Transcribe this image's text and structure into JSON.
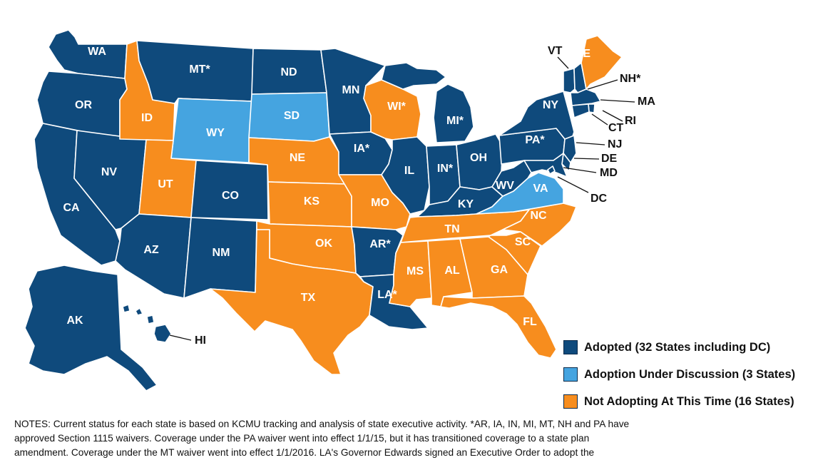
{
  "colors": {
    "adopted": "#0f4a7c",
    "discussion": "#45a4e0",
    "not_adopting": "#f78d1e"
  },
  "legend": [
    {
      "status": "adopted",
      "label": "Adopted (32 States including DC)"
    },
    {
      "status": "discussion",
      "label": "Adoption Under Discussion (3 States)"
    },
    {
      "status": "not_adopting",
      "label": "Not Adopting At This Time (16 States)"
    }
  ],
  "states": [
    {
      "abbr": "WA",
      "label": "WA",
      "status": "adopted"
    },
    {
      "abbr": "OR",
      "label": "OR",
      "status": "adopted"
    },
    {
      "abbr": "CA",
      "label": "CA",
      "status": "adopted"
    },
    {
      "abbr": "NV",
      "label": "NV",
      "status": "adopted"
    },
    {
      "abbr": "ID",
      "label": "ID",
      "status": "not_adopting"
    },
    {
      "abbr": "MT",
      "label": "MT*",
      "status": "adopted"
    },
    {
      "abbr": "WY",
      "label": "WY",
      "status": "discussion"
    },
    {
      "abbr": "UT",
      "label": "UT",
      "status": "not_adopting"
    },
    {
      "abbr": "AZ",
      "label": "AZ",
      "status": "adopted"
    },
    {
      "abbr": "CO",
      "label": "CO",
      "status": "adopted"
    },
    {
      "abbr": "NM",
      "label": "NM",
      "status": "adopted"
    },
    {
      "abbr": "ND",
      "label": "ND",
      "status": "adopted"
    },
    {
      "abbr": "SD",
      "label": "SD",
      "status": "discussion"
    },
    {
      "abbr": "NE",
      "label": "NE",
      "status": "not_adopting"
    },
    {
      "abbr": "KS",
      "label": "KS",
      "status": "not_adopting"
    },
    {
      "abbr": "OK",
      "label": "OK",
      "status": "not_adopting"
    },
    {
      "abbr": "TX",
      "label": "TX",
      "status": "not_adopting"
    },
    {
      "abbr": "MN",
      "label": "MN",
      "status": "adopted"
    },
    {
      "abbr": "IA",
      "label": "IA*",
      "status": "adopted"
    },
    {
      "abbr": "MO",
      "label": "MO",
      "status": "not_adopting"
    },
    {
      "abbr": "AR",
      "label": "AR*",
      "status": "adopted"
    },
    {
      "abbr": "LA",
      "label": "LA*",
      "status": "adopted"
    },
    {
      "abbr": "WI",
      "label": "WI*",
      "status": "not_adopting"
    },
    {
      "abbr": "IL",
      "label": "IL",
      "status": "adopted"
    },
    {
      "abbr": "MI",
      "label": "MI*",
      "status": "adopted"
    },
    {
      "abbr": "IN",
      "label": "IN*",
      "status": "adopted"
    },
    {
      "abbr": "OH",
      "label": "OH",
      "status": "adopted"
    },
    {
      "abbr": "KY",
      "label": "KY",
      "status": "adopted"
    },
    {
      "abbr": "TN",
      "label": "TN",
      "status": "not_adopting"
    },
    {
      "abbr": "MS",
      "label": "MS",
      "status": "not_adopting"
    },
    {
      "abbr": "AL",
      "label": "AL",
      "status": "not_adopting"
    },
    {
      "abbr": "GA",
      "label": "GA",
      "status": "not_adopting"
    },
    {
      "abbr": "FL",
      "label": "FL",
      "status": "not_adopting"
    },
    {
      "abbr": "SC",
      "label": "SC",
      "status": "not_adopting"
    },
    {
      "abbr": "NC",
      "label": "NC",
      "status": "not_adopting"
    },
    {
      "abbr": "VA",
      "label": "VA",
      "status": "discussion"
    },
    {
      "abbr": "WV",
      "label": "WV",
      "status": "adopted"
    },
    {
      "abbr": "PA",
      "label": "PA*",
      "status": "adopted"
    },
    {
      "abbr": "NY",
      "label": "NY",
      "status": "adopted"
    },
    {
      "abbr": "VT",
      "label": "VT",
      "status": "adopted"
    },
    {
      "abbr": "NH",
      "label": "NH*",
      "status": "adopted"
    },
    {
      "abbr": "ME",
      "label": "ME",
      "status": "not_adopting"
    },
    {
      "abbr": "MA",
      "label": "MA",
      "status": "adopted"
    },
    {
      "abbr": "RI",
      "label": "RI",
      "status": "adopted"
    },
    {
      "abbr": "CT",
      "label": "CT",
      "status": "adopted"
    },
    {
      "abbr": "NJ",
      "label": "NJ",
      "status": "adopted"
    },
    {
      "abbr": "DE",
      "label": "DE",
      "status": "adopted"
    },
    {
      "abbr": "MD",
      "label": "MD",
      "status": "adopted"
    },
    {
      "abbr": "DC",
      "label": "DC",
      "status": "adopted"
    },
    {
      "abbr": "AK",
      "label": "AK",
      "status": "adopted"
    },
    {
      "abbr": "HI",
      "label": "HI",
      "status": "adopted"
    }
  ],
  "notes": {
    "line1": "NOTES: Current status for each state is based on KCMU tracking and analysis of state executive activity. *AR, IA, IN, MI, MT, NH and PA have",
    "line2": "approved Section 1115 waivers. Coverage under the PA waiver went into effect 1/1/15, but it has transitioned coverage to a state plan",
    "line3": "amendment. Coverage under the MT waiver went into effect 1/1/2016. LA's Governor Edwards signed an Executive Order to adopt the"
  }
}
